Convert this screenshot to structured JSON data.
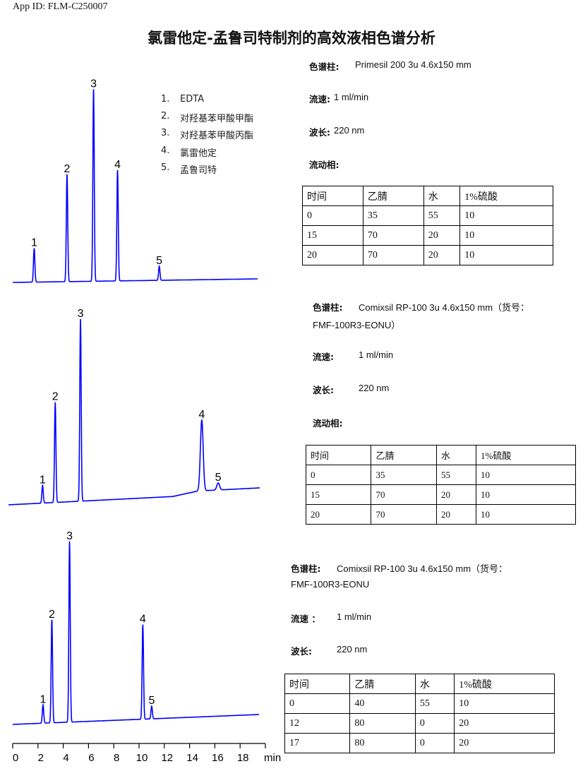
{
  "header": {
    "app_id": "App ID: FLM-C250007",
    "title": "氯雷他定-孟鲁司特制剂的高效液相色谱分析"
  },
  "legend": [
    {
      "num": "1.",
      "name": "EDTA"
    },
    {
      "num": "2.",
      "name": "对羟基苯甲酸甲酯"
    },
    {
      "num": "3.",
      "name": "对羟基苯甲酸丙酯"
    },
    {
      "num": "4.",
      "name": "氯雷他定"
    },
    {
      "num": "5.",
      "name": "孟鲁司特"
    }
  ],
  "methods": [
    {
      "column_label": "色谱柱:",
      "column_value": "Primesil 200 3u 4.6x150 mm",
      "column_value2": "",
      "flow_label": "流速:",
      "flow_value": "1 ml/min",
      "wavelength_label": "波长:",
      "wavelength_value": "220 nm",
      "mobile_label": "流动相:",
      "table": {
        "headers": [
          "时间",
          "乙腈",
          "水",
          "1%硫酸"
        ],
        "rows": [
          [
            "0",
            "35",
            "55",
            "10"
          ],
          [
            "15",
            "70",
            "20",
            "10"
          ],
          [
            "20",
            "70",
            "20",
            "10"
          ]
        ]
      }
    },
    {
      "column_label": "色谱柱:",
      "column_value": "Comixsil RP-100 3u 4.6x150 mm（货号：",
      "column_value2": "FMF-100R3-EONU）",
      "flow_label": "流速:",
      "flow_value": "1 ml/min",
      "wavelength_label": "波长:",
      "wavelength_value": "220 nm",
      "mobile_label": "流动相:",
      "table": {
        "headers": [
          "时间",
          "乙腈",
          "水",
          "1%硫酸"
        ],
        "rows": [
          [
            "0",
            "35",
            "55",
            "10"
          ],
          [
            "15",
            "70",
            "20",
            "10"
          ],
          [
            "20",
            "70",
            "20",
            "10"
          ]
        ]
      }
    },
    {
      "column_label": "色谱柱:",
      "column_value": "Comixsil RP-100 3u 4.6x150 mm（货号：",
      "column_value2": "FMF-100R3-EONU",
      "flow_label": "流速 ：",
      "flow_value": "1 ml/min",
      "wavelength_label": "波长:",
      "wavelength_value": "220 nm",
      "table": {
        "headers": [
          "时间",
          "乙腈",
          "水",
          "1%硫酸"
        ],
        "rows": [
          [
            "0",
            "40",
            "55",
            "10"
          ],
          [
            "12",
            "80",
            "0",
            "20"
          ],
          [
            "17",
            "80",
            "0",
            "20"
          ]
        ]
      }
    }
  ],
  "chart_data": [
    {
      "type": "line",
      "color": "#0000ff",
      "xlim": [
        0,
        19.5
      ],
      "peaks": [
        {
          "label": "1",
          "t": 1.7,
          "h": 48
        },
        {
          "label": "2",
          "t": 4.3,
          "h": 152
        },
        {
          "label": "3",
          "t": 6.4,
          "h": 272
        },
        {
          "label": "4",
          "t": 8.3,
          "h": 157
        },
        {
          "label": "5",
          "t": 11.6,
          "h": 20
        }
      ]
    },
    {
      "type": "line",
      "color": "#0000ff",
      "xlim": [
        0,
        19.5
      ],
      "peaks": [
        {
          "label": "1",
          "t": 2.7,
          "h": 25
        },
        {
          "label": "2",
          "t": 3.7,
          "h": 142
        },
        {
          "label": "3",
          "t": 5.7,
          "h": 258
        },
        {
          "label": "4",
          "t": 15.3,
          "h": 100
        },
        {
          "label": "5",
          "t": 16.6,
          "h": 10
        }
      ]
    },
    {
      "type": "line",
      "color": "#0000ff",
      "xlim": [
        0,
        19.5
      ],
      "xlabel": "min",
      "xticks": [
        0,
        2,
        4,
        6,
        8,
        10,
        12,
        14,
        16,
        18
      ],
      "peaks": [
        {
          "label": "1",
          "t": 2.4,
          "h": 26
        },
        {
          "label": "2",
          "t": 3.1,
          "h": 146
        },
        {
          "label": "3",
          "t": 4.5,
          "h": 256
        },
        {
          "label": "4",
          "t": 10.3,
          "h": 134
        },
        {
          "label": "5",
          "t": 11.0,
          "h": 18
        }
      ]
    }
  ]
}
